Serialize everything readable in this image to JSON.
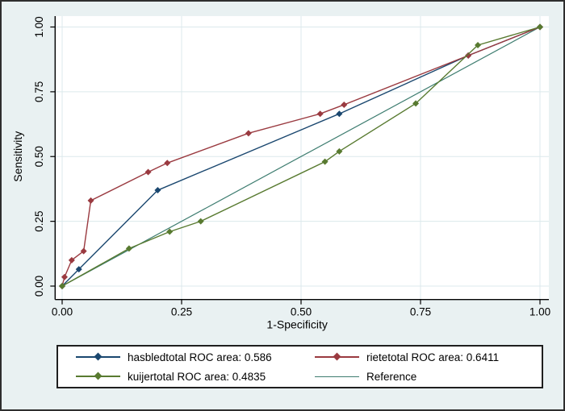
{
  "figure": {
    "background_color": "#e9f1f2",
    "plot_background": "#ffffff",
    "grid_color": "#dce9ec",
    "axis_color": "#000000",
    "text_color": "#000000",
    "border_color": "#2e2e2e"
  },
  "chart_data": {
    "type": "line",
    "subtype": "roc-comparison",
    "title": "",
    "xlabel": "1-Specificity",
    "ylabel": "Sensitivity",
    "xlim": [
      0,
      1
    ],
    "ylim": [
      0,
      1
    ],
    "grid": true,
    "legend_position": "bottom",
    "xticks": [
      0,
      0.25,
      0.5,
      0.75,
      1
    ],
    "yticks": [
      0,
      0.25,
      0.5,
      0.75,
      1
    ],
    "xtick_labels": [
      "0.00",
      "0.25",
      "0.50",
      "0.75",
      "1.00"
    ],
    "ytick_labels": [
      "0.00",
      "0.25",
      "0.50",
      "0.75",
      "1.00"
    ],
    "series": [
      {
        "name": "Reference",
        "legend_label": "Reference",
        "roc_area": null,
        "color": "#3e7d70",
        "marker": false,
        "points": [
          [
            0,
            0
          ],
          [
            1,
            1
          ]
        ]
      },
      {
        "name": "hasbledtotal",
        "legend_label": "hasbledtotal ROC area: 0.586",
        "roc_area": 0.586,
        "color": "#1a476f",
        "marker": true,
        "points": [
          [
            0,
            0
          ],
          [
            0.035,
            0.065
          ],
          [
            0.2,
            0.37
          ],
          [
            0.58,
            0.665
          ],
          [
            0.85,
            0.89
          ],
          [
            1,
            1
          ]
        ]
      },
      {
        "name": "rietetotal",
        "legend_label": "rietetotal ROC area: 0.6411",
        "roc_area": 0.6411,
        "color": "#9a3a40",
        "marker": true,
        "points": [
          [
            0,
            0
          ],
          [
            0.005,
            0.035
          ],
          [
            0.02,
            0.1
          ],
          [
            0.045,
            0.135
          ],
          [
            0.06,
            0.33
          ],
          [
            0.18,
            0.44
          ],
          [
            0.22,
            0.475
          ],
          [
            0.39,
            0.59
          ],
          [
            0.54,
            0.665
          ],
          [
            0.59,
            0.7
          ],
          [
            0.85,
            0.89
          ],
          [
            1,
            1
          ]
        ]
      },
      {
        "name": "kuijertotal",
        "legend_label": "kuijertotal ROC area: 0.4835",
        "roc_area": 0.4835,
        "color": "#587a30",
        "marker": true,
        "points": [
          [
            0,
            0
          ],
          [
            0.14,
            0.145
          ],
          [
            0.225,
            0.21
          ],
          [
            0.29,
            0.25
          ],
          [
            0.55,
            0.48
          ],
          [
            0.58,
            0.52
          ],
          [
            0.74,
            0.705
          ],
          [
            0.87,
            0.93
          ],
          [
            1,
            1
          ]
        ]
      }
    ],
    "legend_order": [
      "hasbledtotal",
      "rietetotal",
      "kuijertotal",
      "Reference"
    ]
  }
}
